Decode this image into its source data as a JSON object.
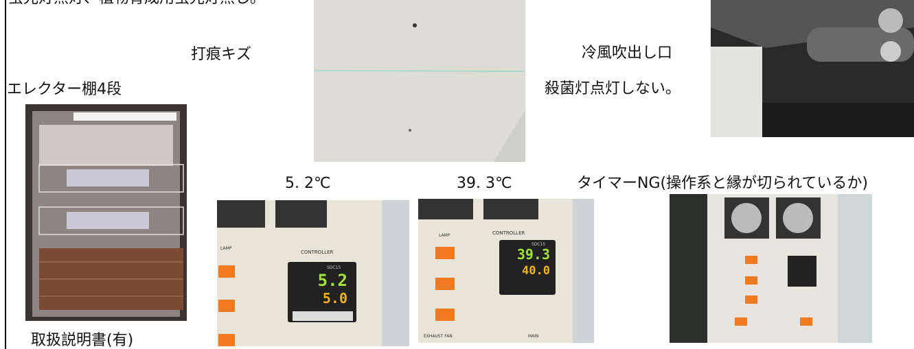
{
  "header_caption": "蛍光灯無灯、植物育成用蛍光灯無し。",
  "captions": {
    "dent": "打痕キズ",
    "cold_air_outlet": "冷風吹出し口",
    "sterilizer_lamp": "殺菌灯点灯しない。",
    "shelf": "エレクター棚4段",
    "manual": "取扱説明書(有)",
    "temp_1": "5. 2℃",
    "temp_2": "39. 3℃",
    "timer": "タイマーNG(操作系と縁が切られているか)"
  },
  "controllers": [
    {
      "lamp": "LAMP",
      "label": "CONTROLLER",
      "model": "SDC15",
      "pv": "5.2",
      "sv": "5.0"
    },
    {
      "lamp": "LAMP",
      "label": "CONTROLLER",
      "model": "SDC15",
      "pv": "39.3",
      "sv": "40.0",
      "fan": "EXHAUST FAN",
      "main": "MAIN"
    }
  ]
}
